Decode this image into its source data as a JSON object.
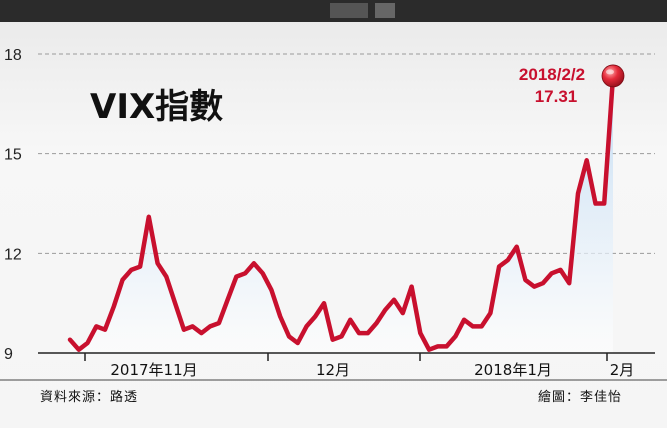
{
  "chart_data": {
    "type": "line",
    "title": "VIX指數",
    "ylim": [
      9,
      18
    ],
    "yticks": [
      9,
      12,
      15,
      18
    ],
    "ytick_labels": [
      "9",
      "12",
      "15",
      "18"
    ],
    "x_labels": [
      "2017年11月",
      "12月",
      "2018年1月",
      "2月"
    ],
    "grid": true,
    "legend": "none",
    "annotation": {
      "date": "2018/2/2",
      "value": "17.31"
    },
    "series": [
      {
        "values": [
          9.4,
          9.1,
          9.3,
          9.8,
          9.7,
          10.4,
          11.2,
          11.5,
          11.6,
          13.1,
          11.7,
          11.3,
          10.5,
          9.7,
          9.8,
          9.6,
          9.8,
          9.9,
          10.6,
          11.3,
          11.4,
          11.7,
          11.4,
          10.9,
          10.1,
          9.5,
          9.3,
          9.8,
          10.1,
          10.5,
          9.4,
          9.5,
          10.0,
          9.6,
          9.6,
          9.9,
          10.3,
          10.6,
          10.2,
          11.0,
          9.6,
          9.1,
          9.2,
          9.2,
          9.5,
          10.0,
          9.8,
          9.8,
          10.2,
          11.6,
          11.8,
          12.2,
          11.2,
          11.0,
          11.1,
          11.4,
          11.5,
          11.1,
          13.8,
          14.8,
          13.5,
          13.5,
          17.31
        ]
      }
    ],
    "colors": {
      "line": "#c8102e",
      "area_top": "#bcd8f2",
      "area_bottom": "#ffffff",
      "marker": "#d9162c",
      "grid": "#9a9a9a"
    }
  },
  "footer": {
    "source": "資料來源：路透",
    "credit": "繪圖：李佳怡"
  }
}
